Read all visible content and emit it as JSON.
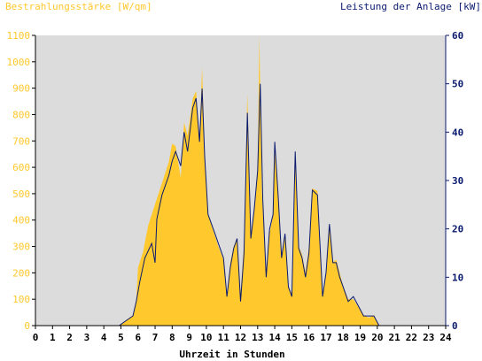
{
  "chart_data": {
    "type": "area",
    "left_axis": {
      "title": "Bestrahlungsstärke [W/qm]",
      "ylim": [
        0,
        1100
      ],
      "ticks": [
        0,
        100,
        200,
        300,
        400,
        500,
        600,
        700,
        800,
        900,
        1000,
        1100
      ],
      "color": "#ffc82c"
    },
    "right_axis": {
      "title": "Leistung der Anlage [kW]",
      "ylim": [
        0,
        60
      ],
      "ticks": [
        0,
        10,
        20,
        30,
        40,
        50,
        60
      ],
      "color": "#0a1a6e"
    },
    "x_axis": {
      "title": "Uhrzeit in Stunden",
      "xlim": [
        0,
        24
      ],
      "ticks": [
        0,
        1,
        2,
        3,
        4,
        5,
        6,
        7,
        8,
        9,
        10,
        11,
        12,
        13,
        14,
        15,
        16,
        17,
        18,
        19,
        20,
        21,
        22,
        23,
        24
      ]
    },
    "grid": false,
    "plot_background": "#dcdcdc",
    "series": [
      {
        "kind": "area",
        "axis": "left",
        "color": "#ffc82c",
        "x": [
          0,
          4.9,
          5.3,
          5.7,
          5.9,
          6.0,
          6.3,
          6.6,
          7.0,
          7.4,
          7.8,
          8.0,
          8.2,
          8.5,
          8.7,
          8.9,
          9.2,
          9.4,
          9.6,
          9.75,
          9.9,
          10.1,
          10.3,
          10.5,
          10.7,
          11.0,
          11.2,
          11.4,
          11.6,
          11.8,
          12.0,
          12.2,
          12.4,
          12.6,
          12.8,
          13.0,
          13.1,
          13.25,
          13.5,
          13.7,
          13.9,
          14.0,
          14.2,
          14.4,
          14.6,
          14.8,
          15.0,
          15.2,
          15.4,
          15.6,
          15.8,
          16.0,
          16.2,
          16.5,
          16.8,
          17.0,
          17.2,
          17.4,
          17.6,
          17.8,
          18.0,
          18.3,
          18.6,
          18.9,
          19.2,
          19.5,
          19.8,
          20.1,
          20.3,
          24
        ],
        "values": [
          0,
          0,
          20,
          40,
          100,
          220,
          280,
          380,
          460,
          540,
          620,
          690,
          680,
          560,
          770,
          720,
          860,
          890,
          700,
          980,
          650,
          420,
          380,
          340,
          300,
          250,
          110,
          240,
          300,
          330,
          120,
          310,
          880,
          340,
          430,
          600,
          1100,
          500,
          200,
          350,
          420,
          700,
          500,
          270,
          350,
          150,
          120,
          660,
          300,
          270,
          200,
          300,
          520,
          510,
          120,
          200,
          380,
          240,
          250,
          200,
          150,
          100,
          100,
          70,
          40,
          30,
          40,
          0,
          0,
          0
        ]
      },
      {
        "kind": "line",
        "axis": "right",
        "color": "#0a1a6e",
        "x": [
          0,
          4.9,
          5.3,
          5.7,
          5.9,
          6.1,
          6.4,
          6.8,
          7.0,
          7.1,
          7.4,
          7.8,
          8.0,
          8.2,
          8.5,
          8.7,
          8.9,
          9.2,
          9.4,
          9.6,
          9.75,
          9.9,
          10.1,
          10.3,
          10.5,
          10.7,
          11.0,
          11.2,
          11.4,
          11.6,
          11.8,
          12.0,
          12.2,
          12.4,
          12.6,
          12.8,
          13.0,
          13.15,
          13.3,
          13.5,
          13.7,
          13.9,
          14.0,
          14.2,
          14.4,
          14.6,
          14.8,
          15.0,
          15.2,
          15.4,
          15.6,
          15.8,
          16.0,
          16.2,
          16.5,
          16.8,
          17.0,
          17.2,
          17.4,
          17.6,
          17.8,
          18.0,
          18.3,
          18.6,
          18.9,
          19.2,
          19.5,
          19.8,
          20.1,
          20.3,
          24
        ],
        "values": [
          0,
          0,
          1,
          2,
          5,
          9,
          14,
          17,
          13,
          22,
          27,
          31,
          34,
          36,
          33,
          40,
          36,
          45,
          47,
          38,
          49,
          35,
          23,
          21,
          19,
          17,
          14,
          6,
          12,
          16,
          18,
          5,
          15,
          44,
          18,
          24,
          32,
          50,
          26,
          10,
          20,
          23,
          38,
          27,
          14,
          19,
          8,
          6,
          36,
          16,
          14,
          10,
          15,
          28,
          27,
          6,
          11,
          21,
          13,
          13,
          10,
          8,
          5,
          6,
          4,
          2,
          2,
          2,
          0,
          0,
          0
        ]
      }
    ]
  }
}
